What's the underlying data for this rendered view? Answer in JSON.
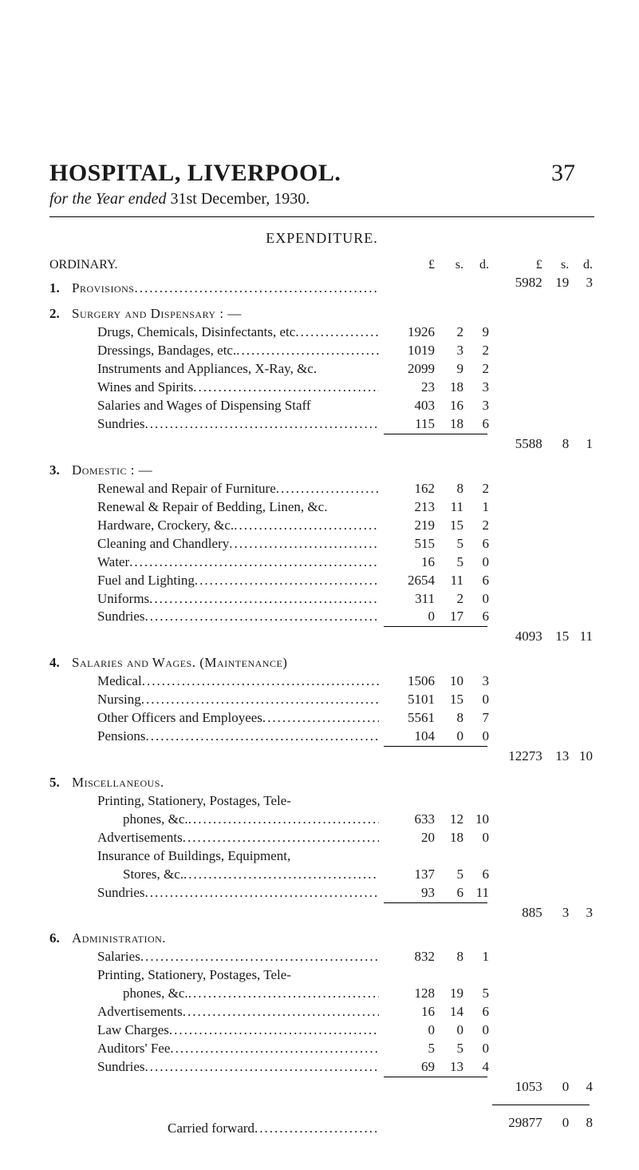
{
  "header": {
    "title_left": "HOSPITAL, LIVERPOOL.",
    "page_number": "37",
    "subtitle_italic": "for the Year ended ",
    "subtitle_after": "31st December, 1930.",
    "expenditure": "EXPENDITURE."
  },
  "col_headers": {
    "ordinary": "ORDINARY.",
    "L1": "£",
    "s1": "s.",
    "d1": "d.",
    "L2": "£",
    "s2": "s.",
    "d2": "d."
  },
  "sections": [
    {
      "no": "1.",
      "heading": "Provisions",
      "heading_has_leaders": true,
      "total": {
        "L": "5982",
        "s": "19",
        "d": "3"
      },
      "items": []
    },
    {
      "no": "2.",
      "heading": "Surgery and Dispensary : —",
      "items": [
        {
          "label": "Drugs, Chemicals, Disinfectants, etc",
          "amt": {
            "L": "1926",
            "s": "2",
            "d": "9"
          }
        },
        {
          "label": "Dressings, Bandages, etc.",
          "amt": {
            "L": "1019",
            "s": "3",
            "d": "2"
          }
        },
        {
          "label": "Instruments and Appliances, X-Ray, &c.",
          "no_leaders": true,
          "amt": {
            "L": "2099",
            "s": "9",
            "d": "2"
          }
        },
        {
          "label": "Wines and Spirits",
          "amt": {
            "L": "23",
            "s": "18",
            "d": "3"
          }
        },
        {
          "label": "Salaries and Wages of Dispensing Staff",
          "no_leaders": true,
          "amt": {
            "L": "403",
            "s": "16",
            "d": "3"
          }
        },
        {
          "label": "Sundries",
          "amt": {
            "L": "115",
            "s": "18",
            "d": "6"
          }
        }
      ],
      "total": {
        "L": "5588",
        "s": "8",
        "d": "1"
      }
    },
    {
      "no": "3.",
      "heading": "Domestic : —",
      "items": [
        {
          "label": "Renewal and Repair of Furniture",
          "amt": {
            "L": "162",
            "s": "8",
            "d": "2"
          }
        },
        {
          "label": "Renewal & Repair of Bedding, Linen, &c.",
          "no_leaders": true,
          "amt": {
            "L": "213",
            "s": "11",
            "d": "1"
          }
        },
        {
          "label": "Hardware, Crockery, &c.",
          "amt": {
            "L": "219",
            "s": "15",
            "d": "2"
          }
        },
        {
          "label": "Cleaning and Chandlery",
          "amt": {
            "L": "515",
            "s": "5",
            "d": "6"
          }
        },
        {
          "label": "Water",
          "amt": {
            "L": "16",
            "s": "5",
            "d": "0"
          }
        },
        {
          "label": "Fuel and Lighting",
          "amt": {
            "L": "2654",
            "s": "11",
            "d": "6"
          }
        },
        {
          "label": "Uniforms",
          "amt": {
            "L": "311",
            "s": "2",
            "d": "0"
          }
        },
        {
          "label": "Sundries",
          "amt": {
            "L": "0",
            "s": "17",
            "d": "6"
          }
        }
      ],
      "total": {
        "L": "4093",
        "s": "15",
        "d": "11"
      }
    },
    {
      "no": "4.",
      "heading": "Salaries and Wages.   (Maintenance)",
      "items": [
        {
          "label": "Medical",
          "amt": {
            "L": "1506",
            "s": "10",
            "d": "3"
          }
        },
        {
          "label": "Nursing",
          "amt": {
            "L": "5101",
            "s": "15",
            "d": "0"
          }
        },
        {
          "label": "Other Officers and Employees",
          "amt": {
            "L": "5561",
            "s": "8",
            "d": "7"
          }
        },
        {
          "label": "Pensions",
          "amt": {
            "L": "104",
            "s": "0",
            "d": "0"
          }
        }
      ],
      "total": {
        "L": "12273",
        "s": "13",
        "d": "10"
      }
    },
    {
      "no": "5.",
      "heading": "Miscellaneous.",
      "items": [
        {
          "label": "Printing, Stationery, Postages, Tele-",
          "wrap": true
        },
        {
          "label": "phones, &c.",
          "wrap_cont": true,
          "amt": {
            "L": "633",
            "s": "12",
            "d": "10"
          }
        },
        {
          "label": "Advertisements",
          "amt": {
            "L": "20",
            "s": "18",
            "d": "0"
          }
        },
        {
          "label": "Insurance of Buildings, Equipment,",
          "wrap": true
        },
        {
          "label": "Stores, &c.",
          "wrap_cont": true,
          "amt": {
            "L": "137",
            "s": "5",
            "d": "6"
          }
        },
        {
          "label": "Sundries",
          "amt": {
            "L": "93",
            "s": "6",
            "d": "11"
          }
        }
      ],
      "total": {
        "L": "885",
        "s": "3",
        "d": "3"
      }
    },
    {
      "no": "6.",
      "heading": "Administration.",
      "items": [
        {
          "label": "Salaries",
          "amt": {
            "L": "832",
            "s": "8",
            "d": "1"
          }
        },
        {
          "label": "Printing, Stationery, Postages, Tele-",
          "wrap": true
        },
        {
          "label": "phones, &c.",
          "wrap_cont": true,
          "amt": {
            "L": "128",
            "s": "19",
            "d": "5"
          }
        },
        {
          "label": "Advertisements",
          "amt": {
            "L": "16",
            "s": "14",
            "d": "6"
          }
        },
        {
          "label": "Law Charges",
          "amt": {
            "L": "0",
            "s": "0",
            "d": "0"
          }
        },
        {
          "label": "Auditors' Fee",
          "amt": {
            "L": "5",
            "s": "5",
            "d": "0"
          }
        },
        {
          "label": "Sundries",
          "amt": {
            "L": "69",
            "s": "13",
            "d": "4"
          }
        }
      ],
      "total": {
        "L": "1053",
        "s": "0",
        "d": "4"
      }
    }
  ],
  "carried": {
    "label": "Carried forward",
    "amt": {
      "L": "29877",
      "s": "0",
      "d": "8"
    }
  }
}
